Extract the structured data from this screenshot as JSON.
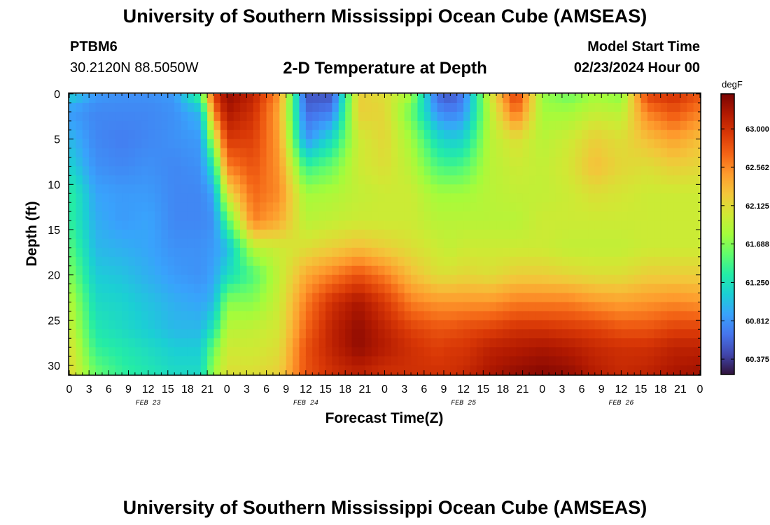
{
  "header": {
    "title": "University of Southern Mississippi Ocean Cube (AMSEAS)",
    "station": "PTBM6",
    "coords": "30.2120N  88.5050W",
    "plot_title": "2-D Temperature at Depth",
    "model_start_label": "Model Start Time",
    "model_start_value": "02/23/2024 Hour 00"
  },
  "footer": {
    "title": "University of Southern Mississippi Ocean Cube (AMSEAS)"
  },
  "chart_data": {
    "type": "heatmap",
    "xlabel": "Forecast Time(Z)",
    "ylabel": "Depth (ft)",
    "x_tick_labels": [
      "0",
      "3",
      "6",
      "9",
      "12",
      "15",
      "18",
      "21",
      "0",
      "3",
      "6",
      "9",
      "12",
      "15",
      "18",
      "21",
      "0",
      "3",
      "6",
      "9",
      "12",
      "15",
      "18",
      "21",
      "0",
      "3",
      "6",
      "9",
      "12",
      "15",
      "18",
      "21",
      "0"
    ],
    "x_range_hours": [
      0,
      96
    ],
    "date_labels": [
      {
        "label": "FEB 23",
        "hour": 12
      },
      {
        "label": "FEB 24",
        "hour": 36
      },
      {
        "label": "FEB 25",
        "hour": 60
      },
      {
        "label": "FEB 26",
        "hour": 84
      }
    ],
    "y_ticks": [
      "0",
      "5",
      "10",
      "15",
      "20",
      "25",
      "30"
    ],
    "y_range": [
      0,
      31
    ],
    "y_inverted": true,
    "colorbar": {
      "unit": "degF",
      "ticks": [
        "63.000",
        "62.562",
        "62.125",
        "61.688",
        "61.250",
        "60.812",
        "60.375"
      ],
      "min": 60.2,
      "max": 63.4,
      "colors": [
        "#30123b",
        "#4145ab",
        "#4675ed",
        "#39a2fc",
        "#1bcfd4",
        "#24eca6",
        "#61fc6c",
        "#a4fc3b",
        "#d1e834",
        "#f3c63a",
        "#fe9b2d",
        "#f36315",
        "#d93806",
        "#b11901",
        "#7a0403"
      ]
    },
    "grid": false,
    "field_description": "time-depth section of water temperature; columns are forecast hours 0-96, rows are depth 0-31 ft",
    "nodes_t": [
      0,
      4,
      8,
      12,
      16,
      20,
      22,
      24,
      28,
      32,
      36,
      40,
      44,
      48,
      52,
      56,
      58,
      60,
      64,
      68,
      72,
      76,
      80,
      84,
      88,
      92,
      96
    ],
    "nodes_d": [
      0,
      2,
      5,
      8,
      11,
      14,
      17,
      20,
      23,
      26,
      28,
      31
    ],
    "values_degF": [
      [
        61.15,
        60.85,
        61.0,
        61.15,
        61.4,
        61.4,
        61.55,
        61.7,
        61.9,
        62.0,
        62.1,
        62.15
      ],
      [
        60.85,
        60.75,
        60.75,
        60.8,
        60.9,
        60.95,
        61.0,
        61.1,
        61.2,
        61.3,
        61.4,
        61.6
      ],
      [
        60.8,
        60.75,
        60.7,
        60.75,
        60.85,
        60.85,
        60.95,
        61.05,
        61.15,
        61.2,
        61.3,
        61.4
      ],
      [
        60.8,
        60.75,
        60.75,
        60.8,
        60.85,
        60.9,
        60.9,
        60.95,
        61.05,
        61.1,
        61.2,
        61.3
      ],
      [
        60.85,
        60.8,
        60.8,
        60.75,
        60.75,
        60.75,
        60.8,
        60.85,
        60.95,
        61.0,
        61.1,
        61.2
      ],
      [
        61.5,
        61.0,
        60.85,
        60.8,
        60.75,
        60.75,
        60.8,
        60.8,
        60.9,
        61.0,
        61.1,
        61.2
      ],
      [
        62.9,
        62.6,
        61.9,
        61.3,
        60.9,
        60.8,
        60.85,
        60.9,
        61.0,
        61.3,
        61.6,
        61.8
      ],
      [
        63.3,
        63.2,
        62.95,
        62.6,
        62.1,
        61.5,
        61.0,
        61.2,
        61.7,
        61.9,
        62.0,
        62.1
      ],
      [
        63.1,
        63.0,
        62.9,
        62.8,
        62.7,
        62.6,
        61.9,
        61.5,
        61.7,
        61.95,
        62.0,
        62.1
      ],
      [
        62.5,
        62.4,
        62.45,
        62.5,
        62.55,
        62.4,
        62.0,
        61.95,
        62.0,
        62.05,
        62.1,
        62.2
      ],
      [
        60.5,
        60.6,
        60.8,
        61.4,
        61.8,
        61.9,
        62.1,
        62.4,
        62.6,
        62.7,
        62.8,
        62.8
      ],
      [
        60.5,
        60.7,
        61.2,
        61.6,
        61.85,
        61.95,
        62.2,
        62.6,
        63.0,
        63.1,
        63.1,
        63.0
      ],
      [
        62.2,
        62.2,
        62.0,
        62.0,
        61.95,
        62.0,
        62.3,
        62.8,
        63.2,
        63.3,
        63.3,
        63.1
      ],
      [
        62.1,
        62.15,
        62.15,
        62.1,
        62.0,
        62.0,
        62.2,
        62.6,
        62.95,
        63.1,
        63.15,
        63.0
      ],
      [
        61.8,
        61.6,
        61.8,
        61.9,
        62.0,
        62.0,
        62.1,
        62.3,
        62.6,
        62.9,
        63.0,
        63.0
      ],
      [
        60.6,
        60.8,
        61.2,
        61.5,
        61.8,
        61.9,
        62.0,
        62.1,
        62.5,
        62.8,
        62.9,
        63.0
      ],
      [
        60.5,
        60.7,
        61.1,
        61.45,
        61.8,
        61.9,
        61.95,
        62.1,
        62.5,
        62.8,
        62.95,
        63.0
      ],
      [
        60.7,
        60.8,
        61.15,
        61.5,
        61.8,
        61.9,
        62.0,
        62.15,
        62.5,
        62.85,
        62.95,
        63.05
      ],
      [
        62.0,
        61.9,
        61.9,
        61.9,
        61.9,
        61.9,
        62.0,
        62.1,
        62.5,
        62.9,
        63.1,
        63.2
      ],
      [
        62.95,
        62.7,
        62.1,
        62.0,
        61.95,
        61.9,
        62.0,
        62.2,
        62.6,
        63.0,
        63.15,
        63.3
      ],
      [
        61.75,
        61.8,
        61.9,
        61.95,
        61.95,
        62.0,
        62.0,
        62.2,
        62.6,
        63.0,
        63.2,
        63.35
      ],
      [
        61.6,
        61.8,
        62.0,
        62.05,
        62.0,
        62.0,
        61.95,
        62.15,
        62.6,
        62.95,
        63.15,
        63.3
      ],
      [
        61.8,
        61.95,
        62.2,
        62.3,
        62.1,
        62.0,
        61.95,
        62.1,
        62.5,
        62.9,
        63.05,
        63.15
      ],
      [
        61.7,
        61.9,
        62.1,
        62.15,
        62.05,
        62.0,
        61.95,
        62.1,
        62.45,
        62.8,
        63.0,
        63.05
      ],
      [
        62.9,
        62.6,
        62.3,
        62.1,
        62.0,
        62.0,
        62.0,
        62.2,
        62.5,
        62.8,
        63.0,
        63.1
      ],
      [
        63.0,
        62.8,
        62.45,
        62.2,
        62.0,
        62.0,
        62.0,
        62.2,
        62.55,
        62.9,
        63.1,
        63.2
      ],
      [
        62.8,
        62.6,
        62.3,
        62.15,
        62.0,
        62.0,
        62.0,
        62.2,
        62.5,
        62.9,
        63.1,
        63.25
      ]
    ]
  }
}
